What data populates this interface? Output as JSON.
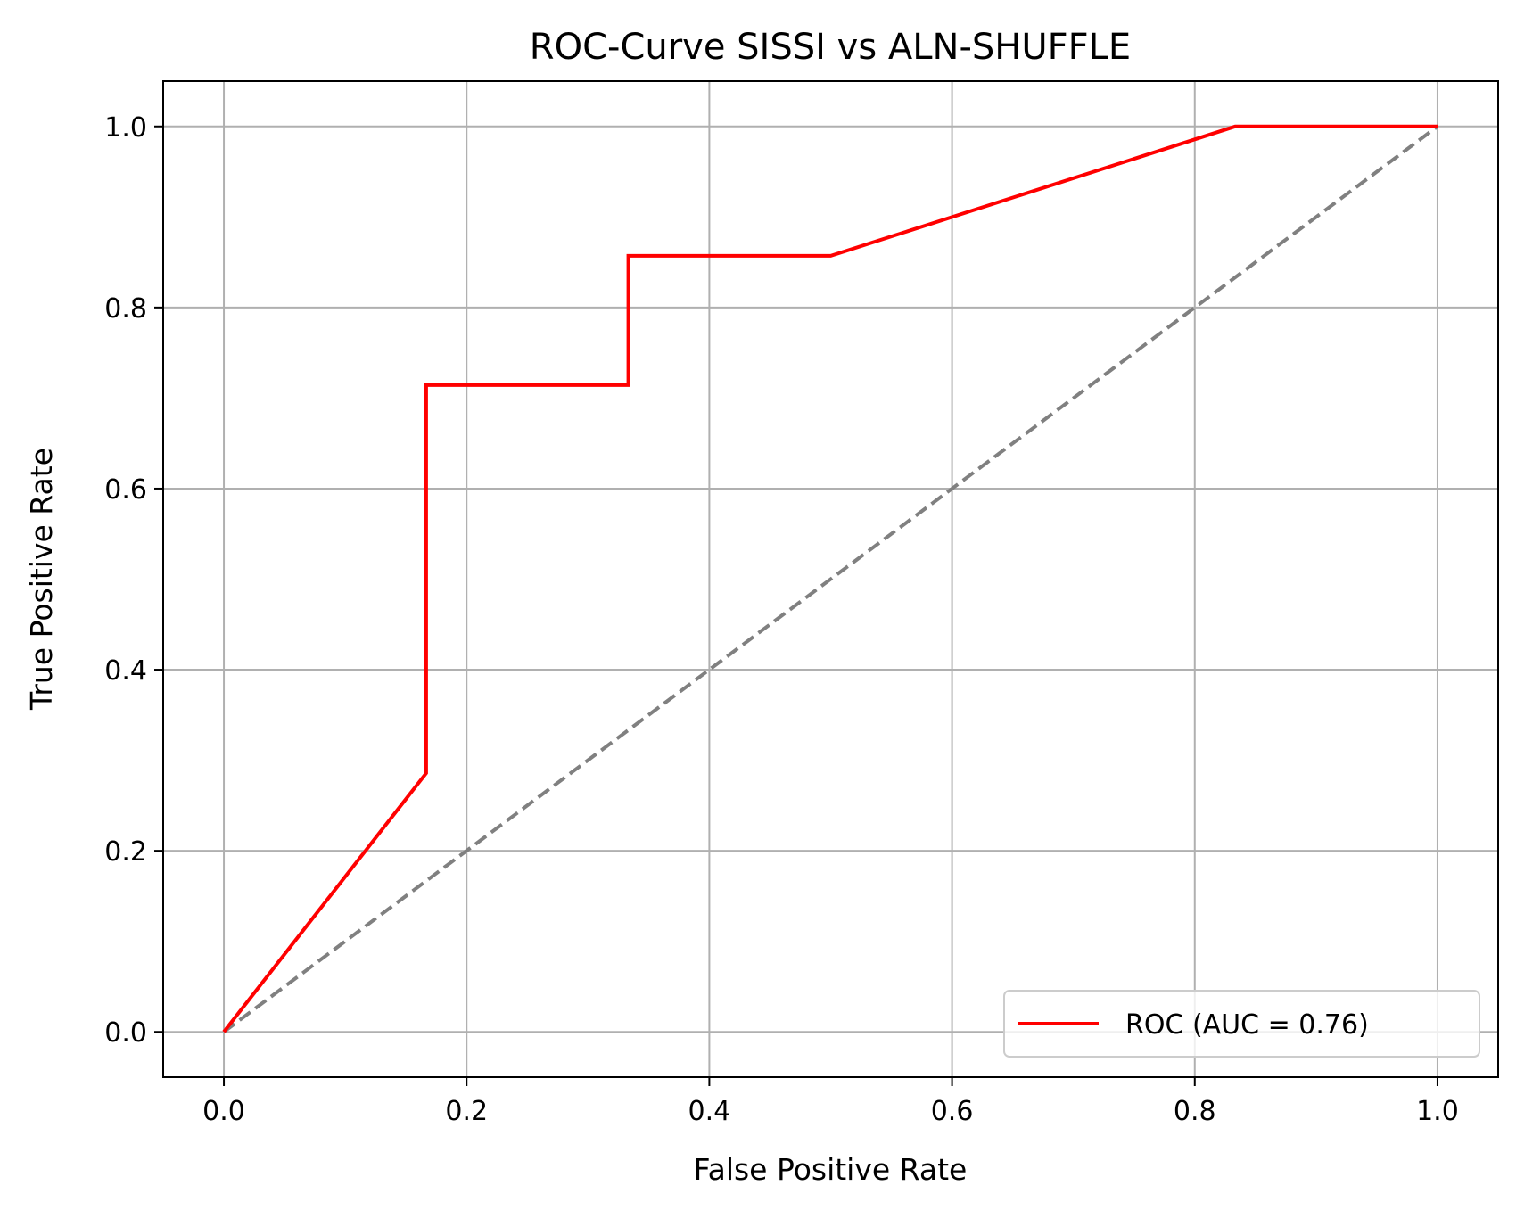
{
  "chart_data": {
    "type": "line",
    "title": "ROC-Curve SISSI vs ALN-SHUFFLE",
    "xlabel": "False Positive Rate",
    "ylabel": "True Positive Rate",
    "xlim": [
      -0.05,
      1.05
    ],
    "ylim": [
      -0.05,
      1.05
    ],
    "xticks": [
      0.0,
      0.2,
      0.4,
      0.6,
      0.8,
      1.0
    ],
    "yticks": [
      0.0,
      0.2,
      0.4,
      0.6,
      0.8,
      1.0
    ],
    "xtick_labels": [
      "0.0",
      "0.2",
      "0.4",
      "0.6",
      "0.8",
      "1.0"
    ],
    "ytick_labels": [
      "0.0",
      "0.2",
      "0.4",
      "0.6",
      "0.8",
      "1.0"
    ],
    "grid": true,
    "legend_position": "lower-right",
    "series": [
      {
        "name": "ROC (AUC = 0.76)",
        "color": "#ff0000",
        "style": "solid",
        "x": [
          0.0,
          0.1667,
          0.1667,
          0.3333,
          0.3333,
          0.5,
          0.8333,
          1.0
        ],
        "y": [
          0.0,
          0.2857,
          0.7143,
          0.7143,
          0.8571,
          0.8571,
          1.0,
          1.0
        ]
      },
      {
        "color": "#808080",
        "style": "dashed",
        "x": [
          0.0,
          1.0
        ],
        "y": [
          0.0,
          1.0
        ]
      }
    ]
  }
}
